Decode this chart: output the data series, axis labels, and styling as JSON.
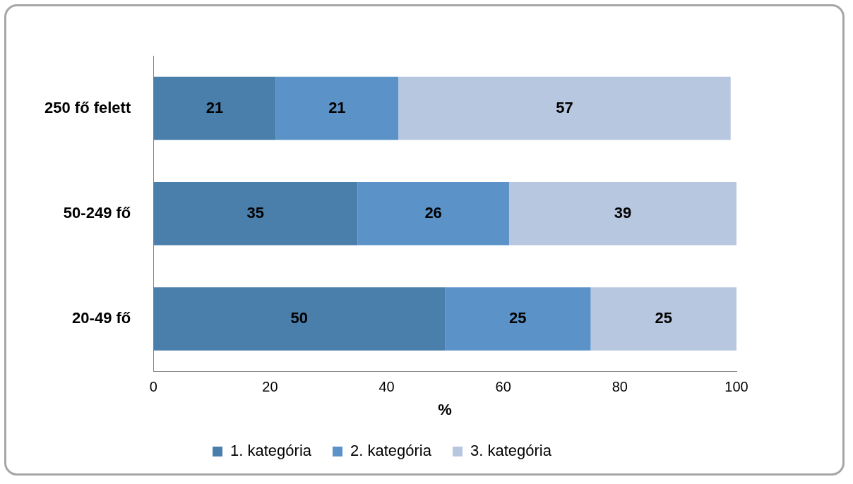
{
  "chart_data": {
    "type": "bar",
    "orientation": "horizontal",
    "stacked": true,
    "categories": [
      "250 fő felett",
      "50-249 fő",
      "20-49 fő"
    ],
    "series": [
      {
        "name": "1. kategória",
        "color": "#4a7eab",
        "values": [
          21,
          35,
          50
        ]
      },
      {
        "name": "2. kategória",
        "color": "#5b93c8",
        "values": [
          21,
          26,
          25
        ]
      },
      {
        "name": "3. kategória",
        "color": "#b8c7e0",
        "values": [
          57,
          39,
          25
        ]
      }
    ],
    "xlabel": "%",
    "xlim": [
      0,
      100
    ],
    "xticks": [
      0,
      20,
      40,
      60,
      80,
      100
    ],
    "data_labels": true,
    "legend": "bottom",
    "grid": false
  }
}
